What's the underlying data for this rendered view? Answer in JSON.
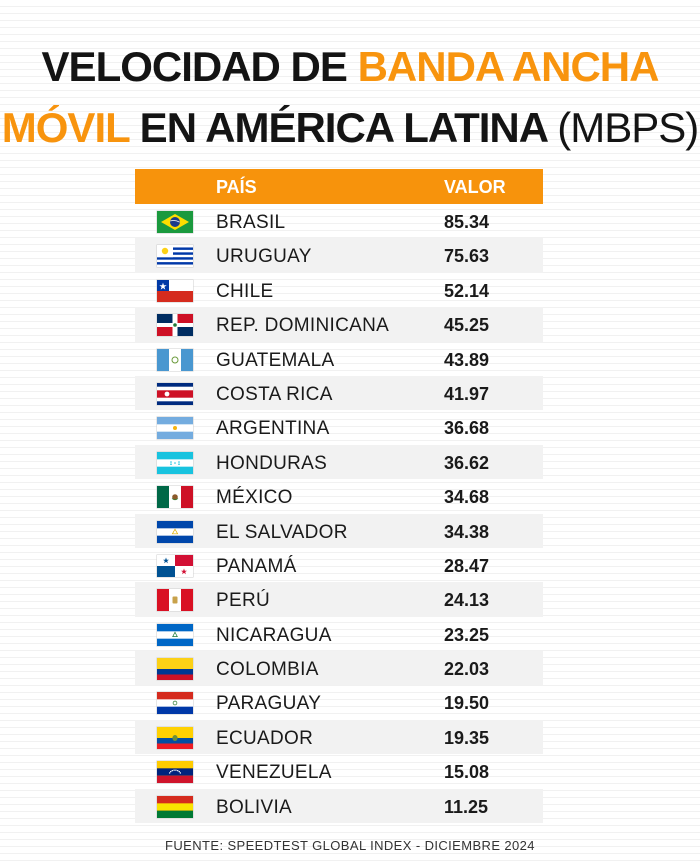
{
  "title": {
    "part1": "VELOCIDAD DE ",
    "part2": "BANDA ANCHA",
    "part3": "MÓVIL",
    "part4": " EN AMÉRICA LATINA ",
    "part5": "(MBPS)"
  },
  "table": {
    "col_country": "PAÍS",
    "col_value": "VALOR"
  },
  "source": "FUENTE: SPEEDTEST GLOBAL INDEX - DICIEMBRE 2024",
  "chart_data": {
    "type": "table",
    "title": "VELOCIDAD DE BANDA ANCHA MÓVIL EN AMÉRICA LATINA (MBPS)",
    "columns": [
      "PAÍS",
      "VALOR"
    ],
    "rows": [
      {
        "country": "BRASIL",
        "value": "85.34",
        "flag": "brazil-flag-icon"
      },
      {
        "country": "URUGUAY",
        "value": "75.63",
        "flag": "uruguay-flag-icon"
      },
      {
        "country": "CHILE",
        "value": "52.14",
        "flag": "chile-flag-icon"
      },
      {
        "country": "REP. DOMINICANA",
        "value": "45.25",
        "flag": "dominican-republic-flag-icon"
      },
      {
        "country": "GUATEMALA",
        "value": "43.89",
        "flag": "guatemala-flag-icon"
      },
      {
        "country": "COSTA RICA",
        "value": "41.97",
        "flag": "costa-rica-flag-icon"
      },
      {
        "country": "ARGENTINA",
        "value": "36.68",
        "flag": "argentina-flag-icon"
      },
      {
        "country": "HONDURAS",
        "value": "36.62",
        "flag": "honduras-flag-icon"
      },
      {
        "country": "MÉXICO",
        "value": "34.68",
        "flag": "mexico-flag-icon"
      },
      {
        "country": "EL SALVADOR",
        "value": "34.38",
        "flag": "el-salvador-flag-icon"
      },
      {
        "country": "PANAMÁ",
        "value": "28.47",
        "flag": "panama-flag-icon"
      },
      {
        "country": "PERÚ",
        "value": "24.13",
        "flag": "peru-flag-icon"
      },
      {
        "country": "NICARAGUA",
        "value": "23.25",
        "flag": "nicaragua-flag-icon"
      },
      {
        "country": "COLOMBIA",
        "value": "22.03",
        "flag": "colombia-flag-icon"
      },
      {
        "country": "PARAGUAY",
        "value": "19.50",
        "flag": "paraguay-flag-icon"
      },
      {
        "country": "ECUADOR",
        "value": "19.35",
        "flag": "ecuador-flag-icon"
      },
      {
        "country": "VENEZUELA",
        "value": "15.08",
        "flag": "venezuela-flag-icon"
      },
      {
        "country": "BOLIVIA",
        "value": "11.25",
        "flag": "bolivia-flag-icon"
      }
    ]
  }
}
